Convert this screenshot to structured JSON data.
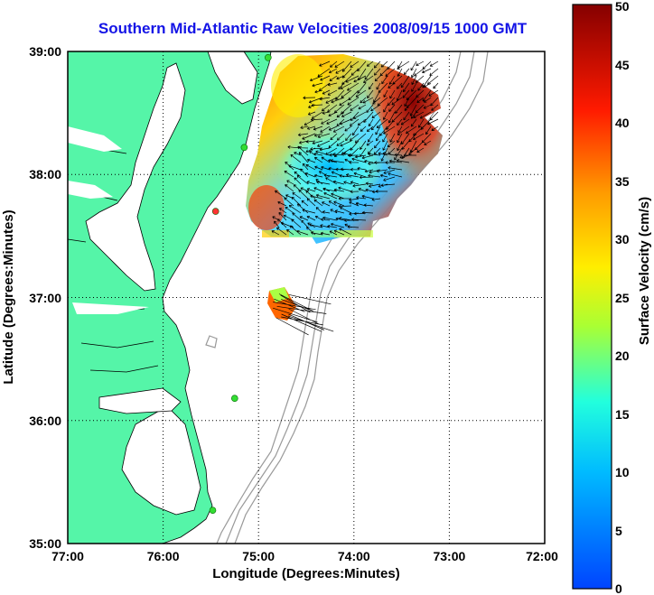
{
  "title": "Southern Mid-Atlantic Raw Velocities 2008/09/15 1000 GMT",
  "x_axis": {
    "label": "Longitude (Degrees:Minutes)",
    "ticks": [
      "77:00",
      "76:00",
      "75:00",
      "74:00",
      "73:00",
      "72:00"
    ],
    "range": [
      -77,
      -72
    ]
  },
  "y_axis": {
    "label": "Latitude (Degrees:Minutes)",
    "ticks": [
      "35:00",
      "36:00",
      "37:00",
      "38:00",
      "39:00"
    ],
    "range": [
      35,
      39
    ]
  },
  "colorbar": {
    "label": "Surface Velocity (cm/s)",
    "ticks": [
      "0",
      "5",
      "10",
      "15",
      "20",
      "25",
      "30",
      "35",
      "40",
      "45",
      "50"
    ],
    "range": [
      0,
      50
    ],
    "colors": [
      "#0055ff",
      "#00ccff",
      "#22ffcc",
      "#bbff22",
      "#ffee00",
      "#ff8800",
      "#ff1100",
      "#8a0000"
    ]
  },
  "map": {
    "land_color": "#55f5a8",
    "ocean_color": "#ffffff",
    "grid": "dotted",
    "bathymetry_color": "#999999"
  },
  "radar_sites": [
    {
      "lon": -74.9,
      "lat": 38.95,
      "color": "#33dd33"
    },
    {
      "lon": -75.15,
      "lat": 38.22,
      "color": "#33dd33"
    },
    {
      "lon": -75.45,
      "lat": 37.7,
      "color": "#ff3333"
    },
    {
      "lon": -75.25,
      "lat": 36.18,
      "color": "#33dd33"
    },
    {
      "lon": -75.48,
      "lat": 35.27,
      "color": "#33dd33"
    }
  ]
}
